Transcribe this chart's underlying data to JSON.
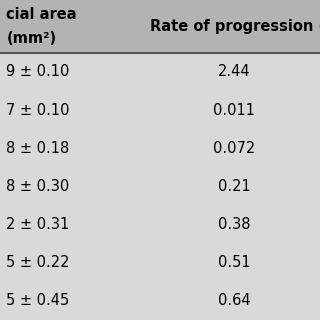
{
  "col1_header_line1": "cial area",
  "col1_header_line2": "(mm²)",
  "col2_header": "Rate of progression (m",
  "col1_values": [
    "9 ± 0.10",
    "7 ± 0.10",
    "8 ± 0.18",
    "8 ± 0.30",
    "2 ± 0.31",
    "5 ± 0.22",
    "5 ± 0.45"
  ],
  "col2_values": [
    "2.44",
    "0.011",
    "0.072",
    "0.21",
    "0.38",
    "0.51",
    "0.64"
  ],
  "header_bg": "#b3b3b3",
  "row_bg": "#d9d9d9",
  "header_fontsize": 10.5,
  "cell_fontsize": 10.5,
  "header_font_weight": "bold",
  "divider_color": "#555555",
  "fig_bg": "#d9d9d9"
}
